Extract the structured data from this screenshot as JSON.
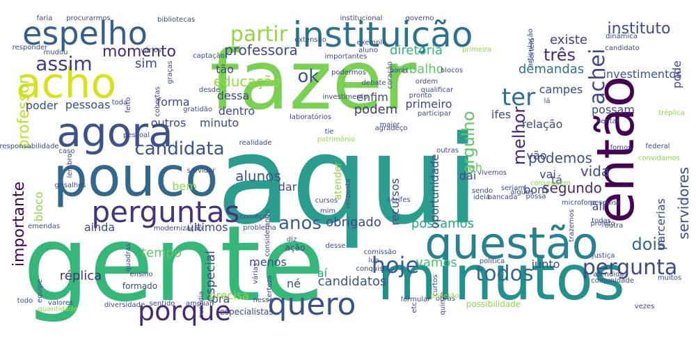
{
  "words": [
    {
      "text": "aqui",
      "color": "#2a9d8f"
    },
    {
      "text": "fazer",
      "color": "#7ad151"
    },
    {
      "text": "gente",
      "color": "#35b779"
    },
    {
      "text": "minutos",
      "color": "#21918c"
    },
    {
      "text": "então",
      "color": "#440154"
    },
    {
      "text": "pouco",
      "color": "#31688e"
    },
    {
      "text": "questão",
      "color": "#26828e"
    },
    {
      "text": "agora",
      "color": "#3b528b"
    },
    {
      "text": "acho",
      "color": "#d8e219"
    },
    {
      "text": "instituição",
      "color": "#2c728e"
    },
    {
      "text": "perguntas",
      "color": "#46327e"
    },
    {
      "text": "espelho",
      "color": "#355f8d"
    },
    {
      "text": "quero",
      "color": "#3b528b"
    },
    {
      "text": "porque",
      "color": "#482878"
    },
    {
      "text": "achei",
      "color": "#3e4989"
    },
    {
      "text": "ter",
      "color": "#2c728e"
    },
    {
      "text": "todos",
      "color": "#31688e"
    },
    {
      "text": "candidata",
      "color": "#3b528b"
    },
    {
      "text": "pergunta",
      "color": "#3e4989"
    },
    {
      "text": "hoje",
      "color": "#355f8d"
    },
    {
      "text": "anos",
      "color": "#355f8d"
    },
    {
      "text": "assim",
      "color": "#443983"
    },
    {
      "text": "dois",
      "color": "#31688e"
    },
    {
      "text": "ok",
      "color": "#3b528b"
    },
    {
      "text": "partir",
      "color": "#90d743"
    },
    {
      "text": "três",
      "color": "#482878"
    },
    {
      "text": "orgulho",
      "color": "#5ec962"
    },
    {
      "text": "melhor",
      "color": "#482878"
    },
    {
      "text": "professor",
      "color": "#c0df25"
    },
    {
      "text": "importante",
      "color": "#440154"
    },
    {
      "text": "instituto",
      "color": "#3e4989"
    },
    {
      "text": "alunos",
      "color": "#3b528b"
    },
    {
      "text": "momento",
      "color": "#482878"
    },
    {
      "text": "professora",
      "color": "#3e4989"
    },
    {
      "text": "educação",
      "color": "#90d743"
    },
    {
      "text": "diretoria",
      "color": "#35b779"
    },
    {
      "text": "trabalho",
      "color": "#5ec962"
    },
    {
      "text": "demandas",
      "color": "#2c728e"
    },
    {
      "text": "sim",
      "color": "#3e4989"
    },
    {
      "text": "podem",
      "color": "#443983"
    },
    {
      "text": "vida",
      "color": "#3e4989"
    },
    {
      "text": "podemos",
      "color": "#3b528b"
    },
    {
      "text": "segundo",
      "color": "#482878"
    },
    {
      "text": "vamos",
      "color": "#44bf70"
    },
    {
      "text": "candidatos",
      "color": "#3b528b"
    },
    {
      "text": "obrigado",
      "color": "#3e4989"
    },
    {
      "text": "possamos",
      "color": "#22a884"
    },
    {
      "text": "réplica",
      "color": "#46327e"
    },
    {
      "text": "especial",
      "color": "#3e4989"
    },
    {
      "text": "tempo",
      "color": "#5ec962"
    },
    {
      "text": "existe",
      "color": "#443983"
    },
    {
      "text": "investimentos",
      "color": "#3b528b"
    },
    {
      "text": "servidores",
      "color": "#3e4989"
    },
    {
      "text": "parcerias",
      "color": "#3e4989"
    },
    {
      "text": "pode",
      "color": "#3e4989"
    },
    {
      "text": "campes",
      "color": "#3e4989"
    },
    {
      "text": "possam",
      "color": "#3e4989"
    },
    {
      "text": "ifes",
      "color": "#3e4989"
    },
    {
      "text": "relação",
      "color": "#3e4989"
    },
    {
      "text": "primeiro",
      "color": "#3e4989"
    },
    {
      "text": "enfim",
      "color": "#3e4989"
    },
    {
      "text": "dessa",
      "color": "#3e4989"
    },
    {
      "text": "forma",
      "color": "#3e4989"
    },
    {
      "text": "pessoas",
      "color": "#3e4989"
    },
    {
      "text": "poder",
      "color": "#3e4989"
    },
    {
      "text": "outros",
      "color": "#3e4989"
    },
    {
      "text": "dentro",
      "color": "#3e4989"
    },
    {
      "text": "minuto",
      "color": "#3e4989"
    },
    {
      "text": "tão",
      "color": "#3e4989"
    },
    {
      "text": "recursos",
      "color": "#3e4989"
    },
    {
      "text": "eh",
      "color": "#5ec962"
    },
    {
      "text": "dai",
      "color": "#3e4989"
    },
    {
      "text": "atender",
      "color": "#90d743"
    },
    {
      "text": "dar",
      "color": "#3e4989"
    },
    {
      "text": "bem",
      "color": "#90d743"
    },
    {
      "text": "bom",
      "color": "#3e4989"
    },
    {
      "text": "vai",
      "color": "#3e4989"
    },
    {
      "text": "vão",
      "color": "#3e4989"
    },
    {
      "text": "ali",
      "color": "#3e4989"
    },
    {
      "text": "tá",
      "color": "#3e4989"
    },
    {
      "text": "aí",
      "color": "#22a884"
    },
    {
      "text": "né",
      "color": "#3e4989"
    },
    {
      "text": "menos",
      "color": "#3e4989"
    },
    {
      "text": "pra",
      "color": "#3e4989"
    },
    {
      "text": "precisa",
      "color": "#90d743"
    },
    {
      "text": "junto",
      "color": "#3e4989"
    },
    {
      "text": "ainda",
      "color": "#3e4989"
    },
    {
      "text": "últimos",
      "color": "#3e4989"
    },
    {
      "text": "bloco",
      "color": "#90d743"
    },
    {
      "text": "oportunidade",
      "color": "#3e4989"
    },
    {
      "text": "possibilidade",
      "color": "#90d743"
    },
    {
      "text": "especialistas",
      "color": "#3e4989"
    },
    {
      "text": "diversidade",
      "color": "#3e4989"
    },
    {
      "text": "sentido",
      "color": "#3e4989"
    },
    {
      "text": "ampliar",
      "color": "#3e4989"
    },
    {
      "text": "formado",
      "color": "#3e4989"
    },
    {
      "text": "ousadia",
      "color": "#3e4989"
    },
    {
      "text": "certeza",
      "color": "#3e4989"
    },
    {
      "text": "várias",
      "color": "#3e4989"
    },
    {
      "text": "ação",
      "color": "#3e4989"
    },
    {
      "text": "política",
      "color": "#3e4989"
    },
    {
      "text": "formular",
      "color": "#3e4989"
    },
    {
      "text": "obras",
      "color": "#3e4989"
    },
    {
      "text": "atendidas",
      "color": "#3e4989"
    },
    {
      "text": "justiça",
      "color": "#3e4989"
    },
    {
      "text": "comunidade",
      "color": "#3e4989"
    },
    {
      "text": "muitos",
      "color": "#3e4989"
    },
    {
      "text": "vezes",
      "color": "#3e4989"
    },
    {
      "text": "todo",
      "color": "#3e4989"
    },
    {
      "text": "valores",
      "color": "#3e4989"
    },
    {
      "text": "quantidade",
      "color": "#90d743"
    },
    {
      "text": "equipe",
      "color": "#3e4989"
    },
    {
      "text": "ensino",
      "color": "#3e4989"
    },
    {
      "text": "quadras",
      "color": "#3e4989"
    },
    {
      "text": "emendas",
      "color": "#3e4989"
    },
    {
      "text": "modernização",
      "color": "#3e4989"
    },
    {
      "text": "problema",
      "color": "#3e4989"
    },
    {
      "text": "começar",
      "color": "#3e4989"
    },
    {
      "text": "diz",
      "color": "#3e4989"
    },
    {
      "text": "comissão",
      "color": "#3e4989"
    },
    {
      "text": "desse",
      "color": "#3e4989"
    },
    {
      "text": "conquistou",
      "color": "#3e4989"
    },
    {
      "text": "lua",
      "color": "#3e4989"
    },
    {
      "text": "mim",
      "color": "#3e4989"
    },
    {
      "text": "cursos",
      "color": "#3e4989"
    },
    {
      "text": "resposta",
      "color": "#3e4989"
    },
    {
      "text": "considerando",
      "color": "#3e4989"
    },
    {
      "text": "servidor",
      "color": "#3e4989"
    },
    {
      "text": "lembro",
      "color": "#3e4989"
    },
    {
      "text": "grisalhos",
      "color": "#3e4989"
    },
    {
      "text": "caso",
      "color": "#3e4989"
    },
    {
      "text": "responsabilidade",
      "color": "#3e4989"
    },
    {
      "text": "pessoal",
      "color": "#3e4989"
    },
    {
      "text": "toda",
      "color": "#3e4989"
    },
    {
      "text": "feito",
      "color": "#3e4989"
    },
    {
      "text": "cobertas",
      "color": "#3e4989"
    },
    {
      "text": "graças",
      "color": "#3e4989"
    },
    {
      "text": "vários",
      "color": "#3e4989"
    },
    {
      "text": "mudou",
      "color": "#3e4989"
    },
    {
      "text": "responder",
      "color": "#3e4989"
    },
    {
      "text": "faria",
      "color": "#3e4989"
    },
    {
      "text": "procurarmos",
      "color": "#3e4989"
    },
    {
      "text": "bibliotecas",
      "color": "#3e4989"
    },
    {
      "text": "institucional",
      "color": "#3e4989"
    },
    {
      "text": "governo",
      "color": "#3e4989"
    },
    {
      "text": "articulação",
      "color": "#3e4989"
    },
    {
      "text": "dinâmica",
      "color": "#3e4989"
    },
    {
      "text": "candidato",
      "color": "#3e4989"
    },
    {
      "text": "sorteio",
      "color": "#3e4989"
    },
    {
      "text": "primeira",
      "color": "#90d743"
    },
    {
      "text": "extensão",
      "color": "#3e4989"
    },
    {
      "text": "exemplo",
      "color": "#3e4989"
    },
    {
      "text": "aluno",
      "color": "#3e4989"
    },
    {
      "text": "importantes",
      "color": "#3e4989"
    },
    {
      "text": "captação",
      "color": "#3e4989"
    },
    {
      "text": "podermos",
      "color": "#3e4989"
    },
    {
      "text": "coração",
      "color": "#3e4989"
    },
    {
      "text": "parar",
      "color": "#3e4989"
    },
    {
      "text": "ordem",
      "color": "#3e4989"
    },
    {
      "text": "blocos",
      "color": "#3e4989"
    },
    {
      "text": "debate",
      "color": "#3e4989"
    },
    {
      "text": "qualificar",
      "color": "#3e4989"
    },
    {
      "text": "pronto",
      "color": "#3e4989"
    },
    {
      "text": "participar",
      "color": "#3e4989"
    },
    {
      "text": "desde",
      "color": "#3e4989"
    },
    {
      "text": "investimento",
      "color": "#3e4989"
    },
    {
      "text": "gratidão",
      "color": "#3e4989"
    },
    {
      "text": "laboratórios",
      "color": "#3e4989"
    },
    {
      "text": "maior",
      "color": "#3e4989"
    },
    {
      "text": "agradeço",
      "color": "#3e4989"
    },
    {
      "text": "tie",
      "color": "#3e4989"
    },
    {
      "text": "patrimônio",
      "color": "#90d743"
    },
    {
      "text": "realidade",
      "color": "#3e4989"
    },
    {
      "text": "outras",
      "color": "#3e4989"
    },
    {
      "text": "vivemos",
      "color": "#3e4989"
    },
    {
      "text": "seriam",
      "color": "#3e4989"
    },
    {
      "text": "alguns",
      "color": "#3e4989"
    },
    {
      "text": "conseguem",
      "color": "#90d743"
    },
    {
      "text": "sendo",
      "color": "#3e4989"
    },
    {
      "text": "ideia",
      "color": "#3e4989"
    },
    {
      "text": "bancada",
      "color": "#3e4989"
    },
    {
      "text": "possa",
      "color": "#3e4989"
    },
    {
      "text": "pesquisa",
      "color": "#3e4989"
    },
    {
      "text": "microfone",
      "color": "#3e4989"
    },
    {
      "text": "todas",
      "color": "#3e4989"
    },
    {
      "text": "outra",
      "color": "#3e4989"
    },
    {
      "text": "trazemos",
      "color": "#3e4989"
    },
    {
      "text": "projeto",
      "color": "#3e4989"
    },
    {
      "text": "fomos",
      "color": "#3e4989"
    },
    {
      "text": "federal",
      "color": "#3e4989"
    },
    {
      "text": "convidamos",
      "color": "#90d743"
    },
    {
      "text": "tréplica",
      "color": "#90d743"
    },
    {
      "text": "sentar",
      "color": "#3e4989"
    },
    {
      "text": "lá",
      "color": "#3e4989"
    },
    {
      "text": "serifes",
      "color": "#3e4989"
    },
    {
      "text": "curtos",
      "color": "#3e4989"
    },
    {
      "text": "quinze",
      "color": "#3e4989"
    },
    {
      "text": "etc",
      "color": "#3e4989"
    },
    {
      "text": "poderão",
      "color": "#90d743"
    },
    {
      "text": "nesse",
      "color": "#3e4989"
    },
    {
      "text": "façamos",
      "color": "#3e4989"
    },
    {
      "text": "12",
      "color": "#3e4989"
    }
  ]
}
